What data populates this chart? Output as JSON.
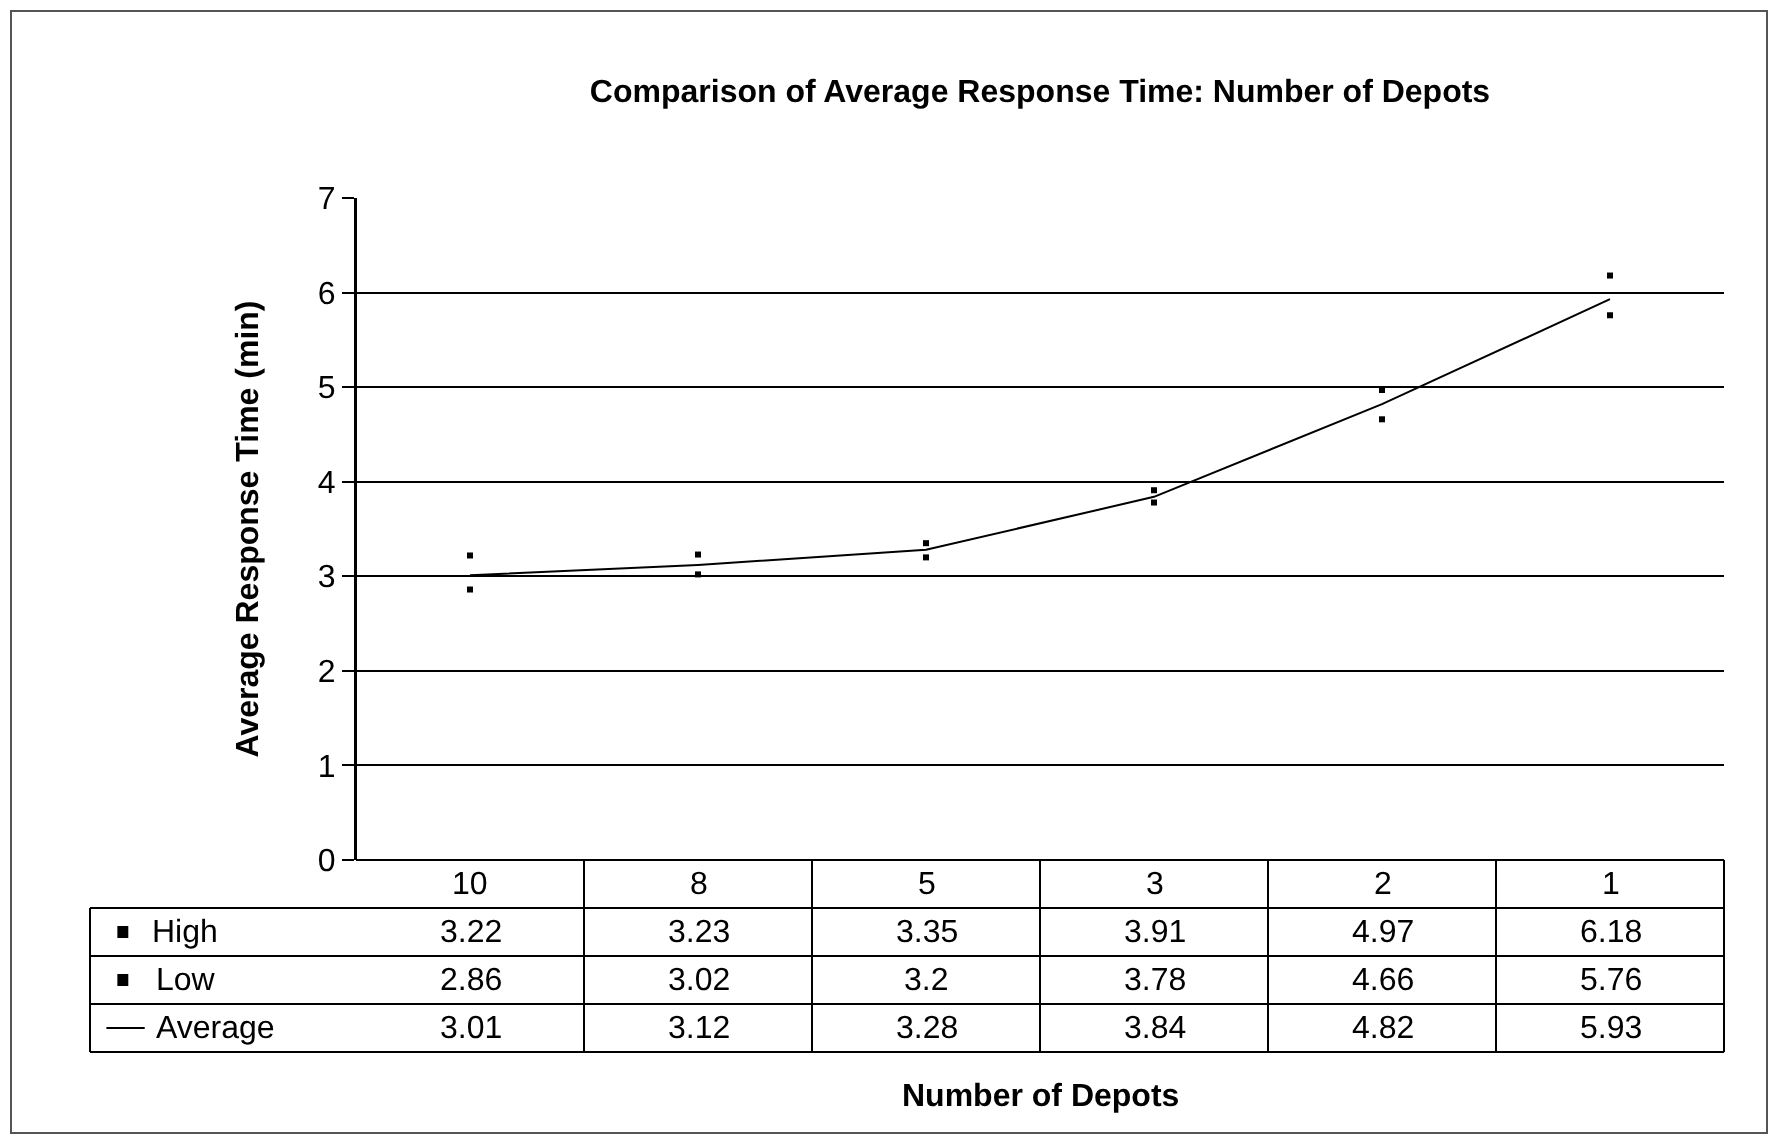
{
  "chart_data": {
    "type": "line",
    "title": "Comparison of Average Response Time: Number of Depots",
    "ylabel": "Average Response Time (min)",
    "categories": [
      "10",
      "8",
      "5",
      "3",
      "2",
      "1"
    ],
    "legend": "bottom left",
    "series": [
      {
        "name": "High",
        "type": "scatter",
        "marker": "square",
        "color": "#000000",
        "values": [
          3.22,
          3.23,
          3.35,
          3.91,
          4.97,
          6.18
        ]
      },
      {
        "name": "Low",
        "type": "scatter",
        "marker": "square",
        "color": "#000000",
        "values": [
          2.86,
          3.02,
          3.2,
          3.78,
          4.66,
          5.76
        ]
      },
      {
        "name": "Average",
        "color": "#000000",
        "values": [
          3.01,
          3.12,
          3.28,
          3.84,
          4.82,
          5.93
        ]
      }
    ],
    "annotations": [
      "Number of Depots"
    ],
    "ylim": [
      0,
      7
    ],
    "yticks": [
      0,
      1,
      2,
      3,
      4,
      5,
      6,
      7
    ],
    "grid": "y",
    "data_labels": true,
    "marker": "none",
    "line_style": "solid"
  }
}
